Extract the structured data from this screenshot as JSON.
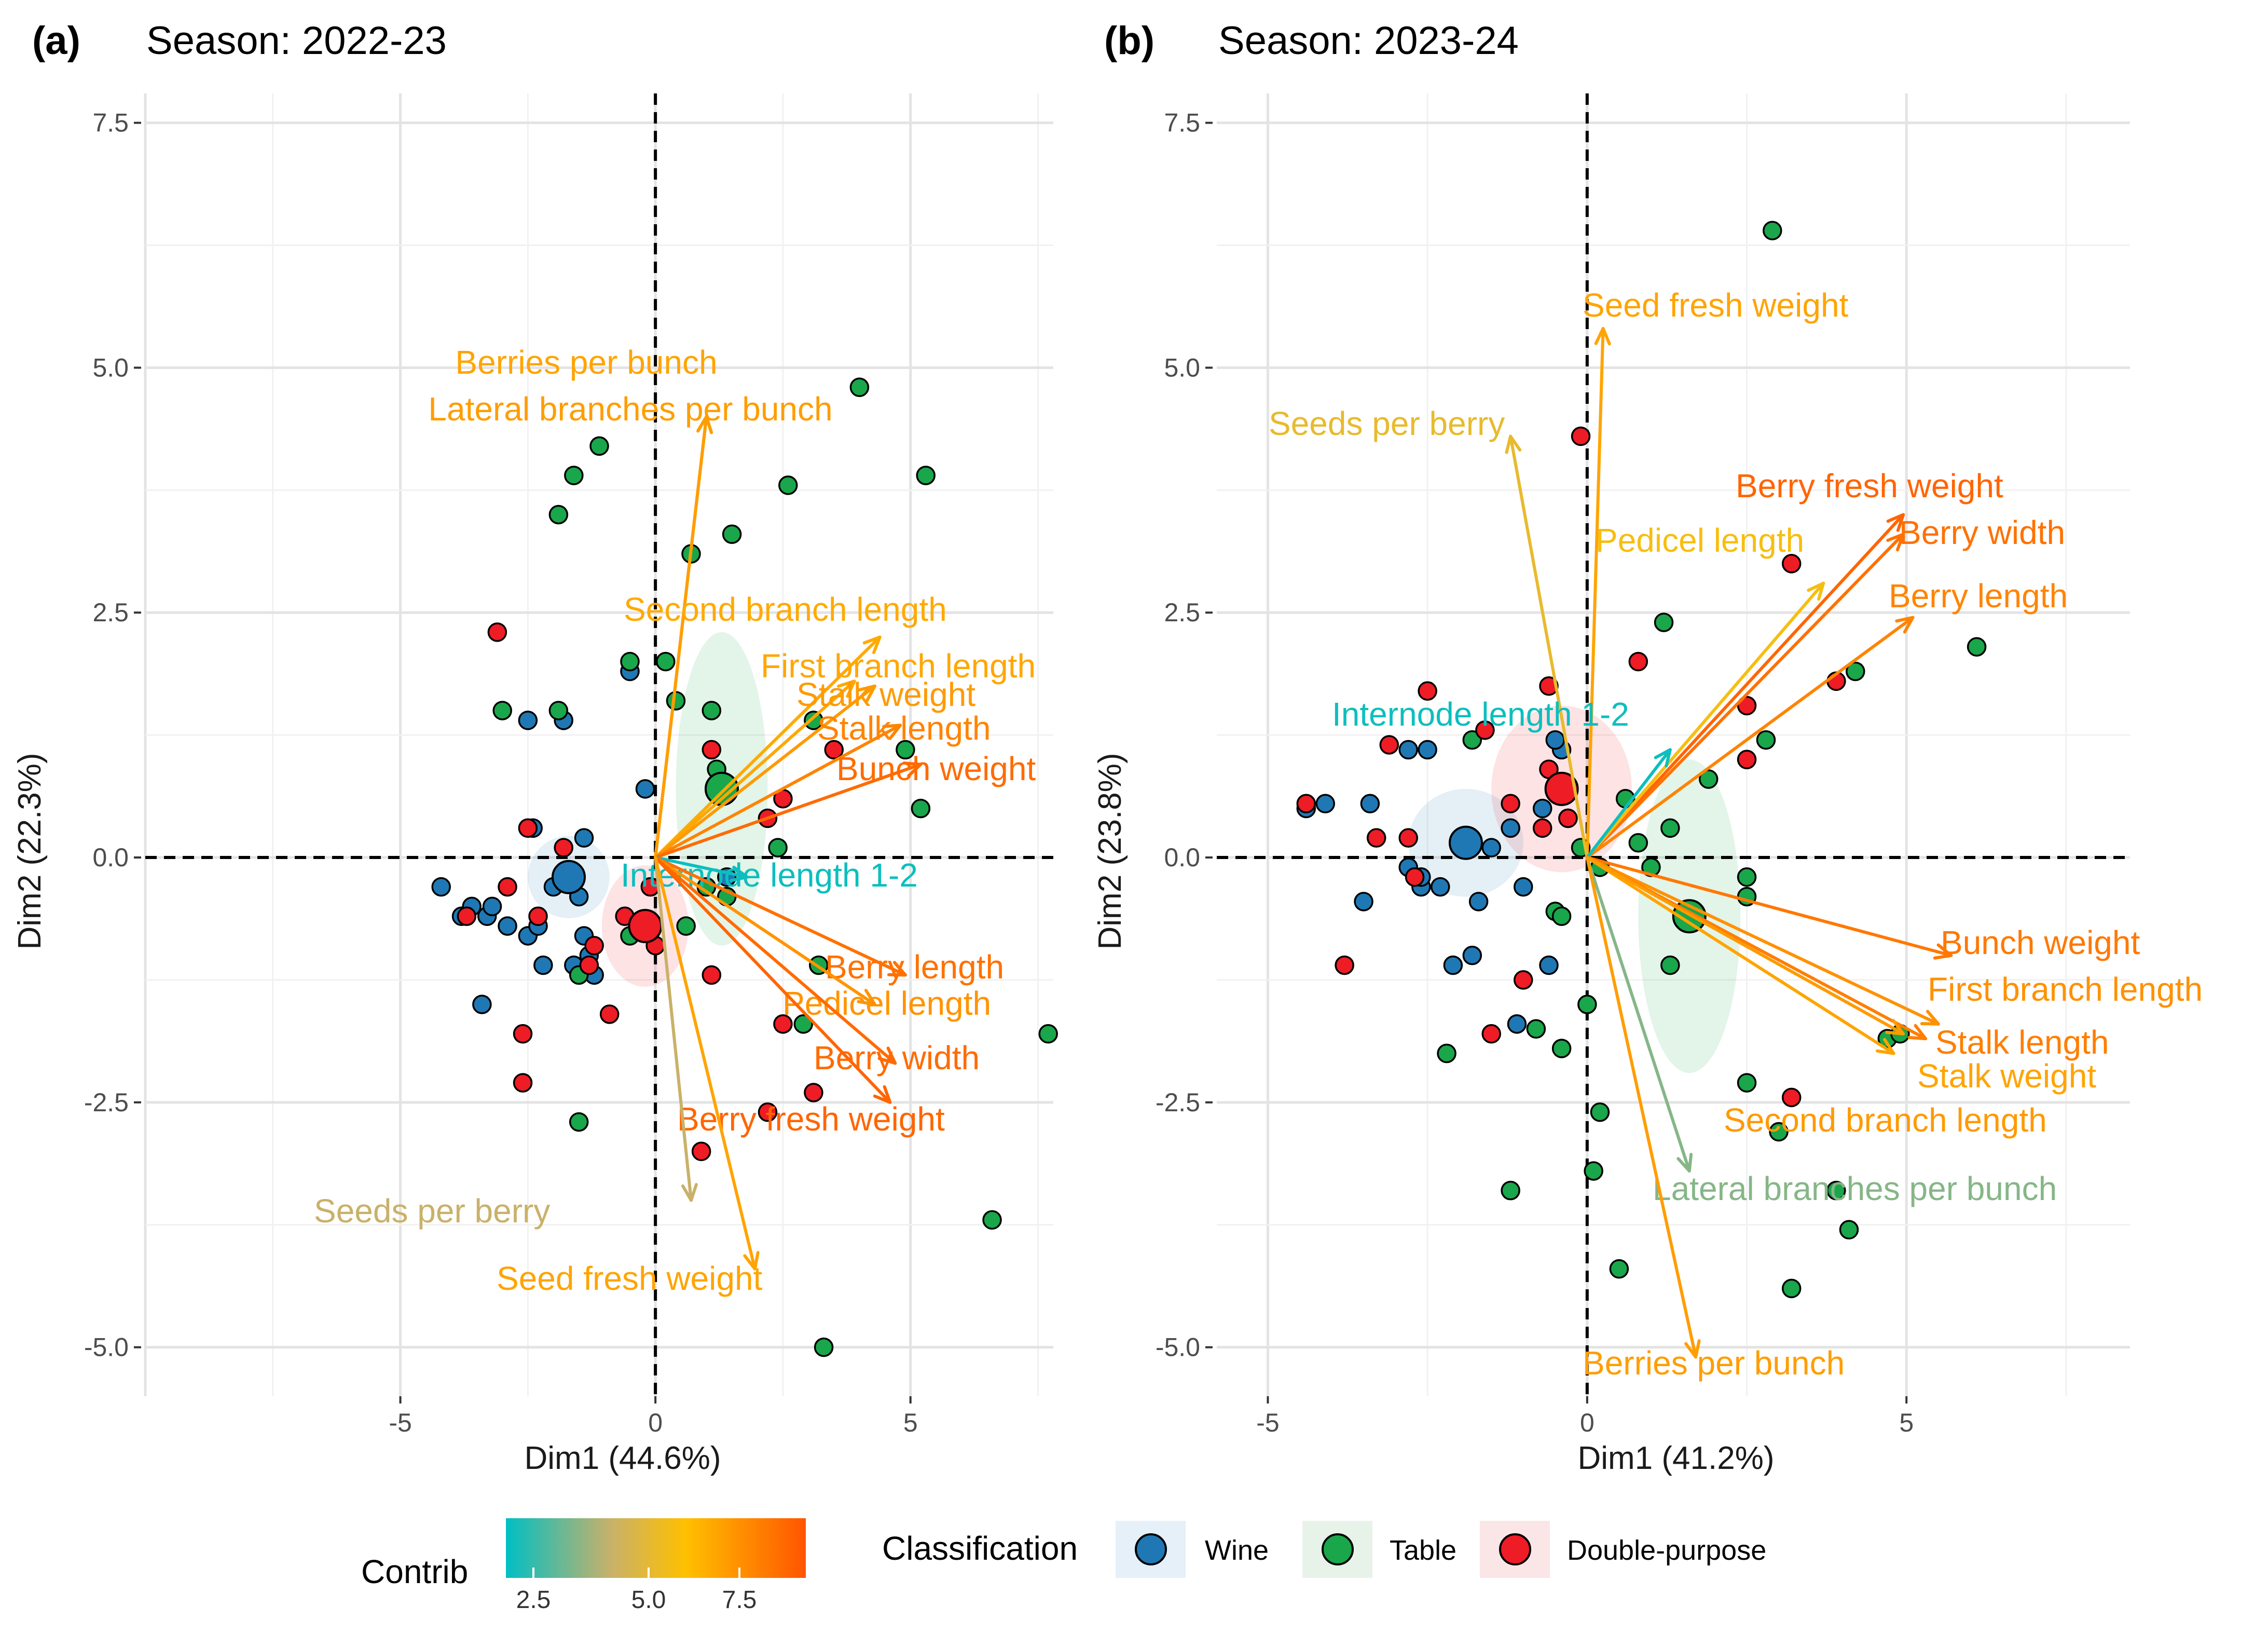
{
  "colors": {
    "wine": "#1f78b4",
    "table": "#1aa64a",
    "double": "#ee1c25",
    "grid": "#e8e8e8"
  },
  "legend": {
    "contrib_title": "Contrib",
    "contrib_ticks": [
      "2.5",
      "5.0",
      "7.5"
    ],
    "contrib_range": [
      1,
      9.5
    ],
    "classification_title": "Classification",
    "items": [
      {
        "label": "Wine",
        "key": "wine"
      },
      {
        "label": "Table",
        "key": "table"
      },
      {
        "label": "Double-purpose",
        "key": "double"
      }
    ]
  },
  "chart_data": [
    {
      "type": "scatter",
      "subtype": "pca-biplot",
      "tag": "(a)",
      "title": "Season: 2022-23",
      "xlabel": "Dim1 (44.6%)",
      "ylabel": "Dim2 (22.3%)",
      "xlim": [
        -10,
        7.8
      ],
      "ylim": [
        -5.5,
        7.8
      ],
      "xticks": [
        -5,
        0,
        5
      ],
      "xtick_labels": [
        "-5",
        "0",
        "5"
      ],
      "yticks": [
        -5,
        -2.5,
        0,
        2.5,
        5,
        7.5
      ],
      "ytick_labels": [
        "-5.0",
        "-2.5",
        "0.0",
        "2.5",
        "5.0",
        "7.5"
      ],
      "grid": true,
      "groups": [
        {
          "key": "wine",
          "center": [
            -1.7,
            -0.2
          ],
          "ellipse_radii": [
            0.8,
            0.42
          ]
        },
        {
          "key": "table",
          "center": [
            1.3,
            0.7
          ],
          "ellipse_radii": [
            0.9,
            1.6
          ]
        },
        {
          "key": "double",
          "center": [
            -0.2,
            -0.7
          ],
          "ellipse_radii": [
            0.85,
            0.62
          ]
        }
      ],
      "points": {
        "wine": [
          [
            -4.2,
            -0.3
          ],
          [
            -3.8,
            -0.6
          ],
          [
            -3.6,
            -0.5
          ],
          [
            -3.3,
            -0.6
          ],
          [
            -3.2,
            -0.5
          ],
          [
            -2.9,
            -0.7
          ],
          [
            -2.5,
            -0.8
          ],
          [
            -2.4,
            0.3
          ],
          [
            -2.3,
            -0.7
          ],
          [
            -2.2,
            -1.1
          ],
          [
            -2,
            -0.3
          ],
          [
            -1.7,
            -0.2
          ],
          [
            -1.5,
            -0.4
          ],
          [
            -1.4,
            0.2
          ],
          [
            -1.4,
            -0.8
          ],
          [
            -1.3,
            -1
          ],
          [
            -1.2,
            -1.2
          ],
          [
            -3.4,
            -1.5
          ],
          [
            -2.5,
            1.4
          ],
          [
            -1.8,
            1.4
          ],
          [
            -0.2,
            0.7
          ],
          [
            -0.5,
            1.9
          ],
          [
            -1.6,
            -1.1
          ],
          [
            1.4,
            -0.2
          ]
        ],
        "table": [
          [
            -3,
            1.5
          ],
          [
            -1.9,
            1.5
          ],
          [
            -1.9,
            3.5
          ],
          [
            -1.6,
            3.9
          ],
          [
            -1.1,
            4.2
          ],
          [
            -0.5,
            2
          ],
          [
            0.2,
            2
          ],
          [
            0.4,
            1.6
          ],
          [
            0.7,
            3.1
          ],
          [
            1.1,
            1.5
          ],
          [
            1.2,
            0.9
          ],
          [
            1.5,
            3.3
          ],
          [
            2.6,
            3.8
          ],
          [
            3.1,
            1.4
          ],
          [
            3.2,
            -1.1
          ],
          [
            2.4,
            0.1
          ],
          [
            4,
            4.8
          ],
          [
            4.9,
            1.1
          ],
          [
            5.3,
            3.9
          ],
          [
            5.2,
            0.5
          ],
          [
            7.7,
            -1.8
          ],
          [
            6.6,
            -3.7
          ],
          [
            3.3,
            -5
          ],
          [
            2.9,
            -1.7
          ],
          [
            -1.5,
            -2.7
          ],
          [
            -0.5,
            -0.8
          ],
          [
            -1.5,
            -1.2
          ],
          [
            0.6,
            -0.7
          ],
          [
            1,
            -0.3
          ],
          [
            1.4,
            -0.4
          ]
        ],
        "double": [
          [
            -3.1,
            2.3
          ],
          [
            -2.5,
            0.3
          ],
          [
            -2.3,
            -0.6
          ],
          [
            -2.6,
            -1.8
          ],
          [
            -2.6,
            -2.3
          ],
          [
            -1.8,
            0.1
          ],
          [
            -1.3,
            -1.1
          ],
          [
            -0.9,
            -1.6
          ],
          [
            -0.6,
            -0.6
          ],
          [
            -0.2,
            -0.7
          ],
          [
            0,
            -0.9
          ],
          [
            1.1,
            1.1
          ],
          [
            2.2,
            0.4
          ],
          [
            2.5,
            0.6
          ],
          [
            3.5,
            1.1
          ],
          [
            2.5,
            -1.7
          ],
          [
            3.1,
            -2.4
          ],
          [
            2.2,
            -2.6
          ],
          [
            0.9,
            -3
          ],
          [
            1.1,
            -1.2
          ],
          [
            -3.7,
            -0.6
          ],
          [
            -2.9,
            -0.3
          ],
          [
            -1.2,
            -0.9
          ],
          [
            -0.1,
            -0.3
          ]
        ]
      },
      "variables": [
        {
          "label": "Berries per bunch",
          "end": [
            1,
            4.5
          ],
          "contrib": 7.0
        },
        {
          "label": "Lateral branches per bunch",
          "end": [
            1,
            4.5
          ],
          "contrib": 7.2
        },
        {
          "label": "Second branch length",
          "end": [
            4.4,
            2.25
          ],
          "contrib": 6.8
        },
        {
          "label": "First branch length",
          "end": [
            3.9,
            1.8
          ],
          "contrib": 6.9
        },
        {
          "label": "Stalk weight",
          "end": [
            4.3,
            1.75
          ],
          "contrib": 7.3
        },
        {
          "label": "Stalk length",
          "end": [
            4.8,
            1.35
          ],
          "contrib": 8.0
        },
        {
          "label": "Bunch weight",
          "end": [
            5.2,
            0.95
          ],
          "contrib": 8.8
        },
        {
          "label": "Internode length 1-2",
          "end": [
            1.8,
            -0.2
          ],
          "contrib": 1.2
        },
        {
          "label": "Berry length",
          "end": [
            4.9,
            -1.2
          ],
          "contrib": 8.6
        },
        {
          "label": "Pedicel length",
          "end": [
            4.3,
            -1.5
          ],
          "contrib": 7.5
        },
        {
          "label": "Berry width",
          "end": [
            4.7,
            -2.1
          ],
          "contrib": 8.8
        },
        {
          "label": "Berry fresh weight",
          "end": [
            4.6,
            -2.5
          ],
          "contrib": 9.0
        },
        {
          "label": "Seeds per berry",
          "end": [
            0.7,
            -3.5
          ],
          "contrib": 4.0
        },
        {
          "label": "Seed fresh weight",
          "end": [
            1.95,
            -4.2
          ],
          "contrib": 7.0
        }
      ]
    },
    {
      "type": "scatter",
      "subtype": "pca-biplot",
      "tag": "(b)",
      "title": "Season: 2023-24",
      "xlabel": "Dim1 (41.2%)",
      "ylabel": "Dim2 (23.8%)",
      "xlim": [
        -5.8,
        8.5
      ],
      "ylim": [
        -5.5,
        7.8
      ],
      "xticks": [
        -5,
        0,
        5
      ],
      "xtick_labels": [
        "-5",
        "0",
        "5"
      ],
      "yticks": [
        -5,
        -2.5,
        0,
        2.5,
        5,
        7.5
      ],
      "ytick_labels": [
        "-5.0",
        "-2.5",
        "0.0",
        "2.5",
        "5.0",
        "7.5"
      ],
      "grid": true,
      "groups": [
        {
          "key": "wine",
          "center": [
            -1.9,
            0.15
          ],
          "ellipse_radii": [
            0.9,
            0.55
          ]
        },
        {
          "key": "table",
          "center": [
            1.6,
            -0.6
          ],
          "ellipse_radii": [
            0.8,
            1.6
          ]
        },
        {
          "key": "double",
          "center": [
            -0.4,
            0.7
          ],
          "ellipse_radii": [
            1.1,
            0.85
          ]
        }
      ],
      "points": {
        "wine": [
          [
            -4.4,
            0.5
          ],
          [
            -4.1,
            0.55
          ],
          [
            -3.4,
            0.55
          ],
          [
            -2.8,
            1.1
          ],
          [
            -2.5,
            1.1
          ],
          [
            -2.8,
            -0.1
          ],
          [
            -2.6,
            -0.3
          ],
          [
            -2.3,
            -0.3
          ],
          [
            -2,
            0.15
          ],
          [
            -1.9,
            0.2
          ],
          [
            -1.7,
            -0.45
          ],
          [
            -1.5,
            0.1
          ],
          [
            -1.2,
            0.3
          ],
          [
            -1,
            -0.3
          ],
          [
            -0.7,
            0.5
          ],
          [
            -0.4,
            1.1
          ],
          [
            -0.3,
            0.4
          ],
          [
            -2.1,
            -1.1
          ],
          [
            -1.8,
            -1
          ],
          [
            -1.1,
            -1.7
          ],
          [
            -0.6,
            -1.1
          ],
          [
            -3.5,
            -0.45
          ],
          [
            -2.6,
            -0.2
          ],
          [
            -0.5,
            1.2
          ]
        ],
        "table": [
          [
            2.9,
            6.4
          ],
          [
            6.1,
            2.15
          ],
          [
            4.2,
            1.9
          ],
          [
            2.8,
            1.2
          ],
          [
            1.2,
            2.4
          ],
          [
            1.9,
            0.8
          ],
          [
            1.3,
            0.3
          ],
          [
            0.8,
            0.15
          ],
          [
            1,
            -0.1
          ],
          [
            0.2,
            -0.1
          ],
          [
            2.5,
            -0.2
          ],
          [
            2.5,
            -0.4
          ],
          [
            1.6,
            -0.6
          ],
          [
            1.3,
            -1.1
          ],
          [
            4.7,
            -1.85
          ],
          [
            4.9,
            -1.8
          ],
          [
            2.5,
            -2.3
          ],
          [
            3,
            -2.8
          ],
          [
            0.2,
            -2.6
          ],
          [
            0.1,
            -3.2
          ],
          [
            -1.2,
            -3.4
          ],
          [
            0.5,
            -4.2
          ],
          [
            3.2,
            -4.4
          ],
          [
            3.9,
            -3.4
          ],
          [
            4.1,
            -3.8
          ],
          [
            -2.2,
            -2
          ],
          [
            -0.8,
            -1.75
          ],
          [
            -0.4,
            -1.95
          ],
          [
            0,
            -1.5
          ],
          [
            -0.5,
            -0.55
          ],
          [
            -0.4,
            -0.6
          ],
          [
            -1.8,
            1.2
          ],
          [
            -0.1,
            0.1
          ],
          [
            0.6,
            0.6
          ]
        ],
        "double": [
          [
            -0.1,
            4.3
          ],
          [
            3.2,
            3
          ],
          [
            3.9,
            1.8
          ],
          [
            2.5,
            1.55
          ],
          [
            2.5,
            1
          ],
          [
            0.8,
            2
          ],
          [
            -0.6,
            1.75
          ],
          [
            -1.2,
            0.55
          ],
          [
            -0.6,
            0.9
          ],
          [
            -0.4,
            0.7
          ],
          [
            -0.3,
            0.4
          ],
          [
            -2.5,
            1.7
          ],
          [
            -3.1,
            1.15
          ],
          [
            -2.8,
            0.2
          ],
          [
            -3.3,
            0.2
          ],
          [
            -4.4,
            0.55
          ],
          [
            -3.8,
            -1.1
          ],
          [
            -1,
            -1.25
          ],
          [
            -1.5,
            -1.8
          ],
          [
            3.2,
            -2.45
          ],
          [
            -2.7,
            -0.2
          ],
          [
            -1.6,
            1.3
          ],
          [
            -0.7,
            0.3
          ]
        ]
      },
      "variables": [
        {
          "label": "Seed fresh weight",
          "end": [
            0.25,
            5.4
          ],
          "contrib": 7.0
        },
        {
          "label": "Seeds per berry",
          "end": [
            -1.2,
            4.3
          ],
          "contrib": 5.2
        },
        {
          "label": "Berry fresh weight",
          "end": [
            4.95,
            3.5
          ],
          "contrib": 9.0
        },
        {
          "label": "Berry width",
          "end": [
            4.95,
            3.3
          ],
          "contrib": 8.6
        },
        {
          "label": "Pedicel length",
          "end": [
            3.7,
            2.8
          ],
          "contrib": 5.8
        },
        {
          "label": "Berry length",
          "end": [
            5.1,
            2.45
          ],
          "contrib": 8.0
        },
        {
          "label": "Internode length 1-2",
          "end": [
            1.3,
            1.1
          ],
          "contrib": 1.2
        },
        {
          "label": "Bunch weight",
          "end": [
            5.7,
            -1
          ],
          "contrib": 8.4
        },
        {
          "label": "First branch length",
          "end": [
            5.5,
            -1.7
          ],
          "contrib": 7.6
        },
        {
          "label": "Stalk length",
          "end": [
            5.3,
            -1.85
          ],
          "contrib": 8.2
        },
        {
          "label": "Stalk weight",
          "end": [
            4.8,
            -2
          ],
          "contrib": 7.0
        },
        {
          "label": "Second branch length",
          "end": [
            4.95,
            -1.8
          ],
          "contrib": 7.3
        },
        {
          "label": "Lateral branches per bunch",
          "end": [
            1.6,
            -3.2
          ],
          "contrib": 3.0
        },
        {
          "label": "Berries per bunch",
          "end": [
            1.7,
            -5.1
          ],
          "contrib": 7.2
        }
      ]
    }
  ]
}
